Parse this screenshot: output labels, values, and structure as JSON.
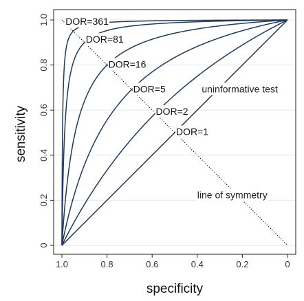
{
  "chart_data": {
    "type": "line",
    "xlabel": "specificity",
    "ylabel": "sensitivity",
    "xlim": [
      1.0,
      0.0
    ],
    "ylim": [
      0.0,
      1.0
    ],
    "x_reversed": true,
    "x_ticks": [
      1.0,
      0.8,
      0.6,
      0.4,
      0.2,
      0.0
    ],
    "x_tick_labels": [
      "1.0",
      "0.8",
      "0.6",
      "0.4",
      "0.2",
      "0"
    ],
    "y_ticks": [
      0.0,
      0.2,
      0.4,
      0.6,
      0.8,
      1.0
    ],
    "y_tick_labels": [
      "0",
      "0.2",
      "0.4",
      "0.6",
      "0.8",
      "1.0"
    ],
    "grid": "horizontal",
    "line_color": "#1f3a5f",
    "series": [
      {
        "name": "DOR=361",
        "dor": 361,
        "label_at": {
          "x": 0.99,
          "y": 0.99
        }
      },
      {
        "name": "DOR=81",
        "dor": 81,
        "label_at": {
          "x": 0.9,
          "y": 0.91
        }
      },
      {
        "name": "DOR=16",
        "dor": 16,
        "label_at": {
          "x": 0.8,
          "y": 0.8
        }
      },
      {
        "name": "DOR=5",
        "dor": 5,
        "label_at": {
          "x": 0.69,
          "y": 0.69
        }
      },
      {
        "name": "DOR=2",
        "dor": 2,
        "label_at": {
          "x": 0.59,
          "y": 0.59
        }
      },
      {
        "name": "DOR=1",
        "dor": 1,
        "label_at": {
          "x": 0.5,
          "y": 0.5
        }
      }
    ],
    "symmetry_line": {
      "from": [
        1.0,
        1.0
      ],
      "to": [
        0.0,
        0.0
      ],
      "style": "dotted"
    },
    "annotations": [
      {
        "text": "uninformative test",
        "x": 0.38,
        "y": 0.69
      },
      {
        "text": "line of symmetry",
        "x": 0.4,
        "y": 0.22
      }
    ]
  }
}
